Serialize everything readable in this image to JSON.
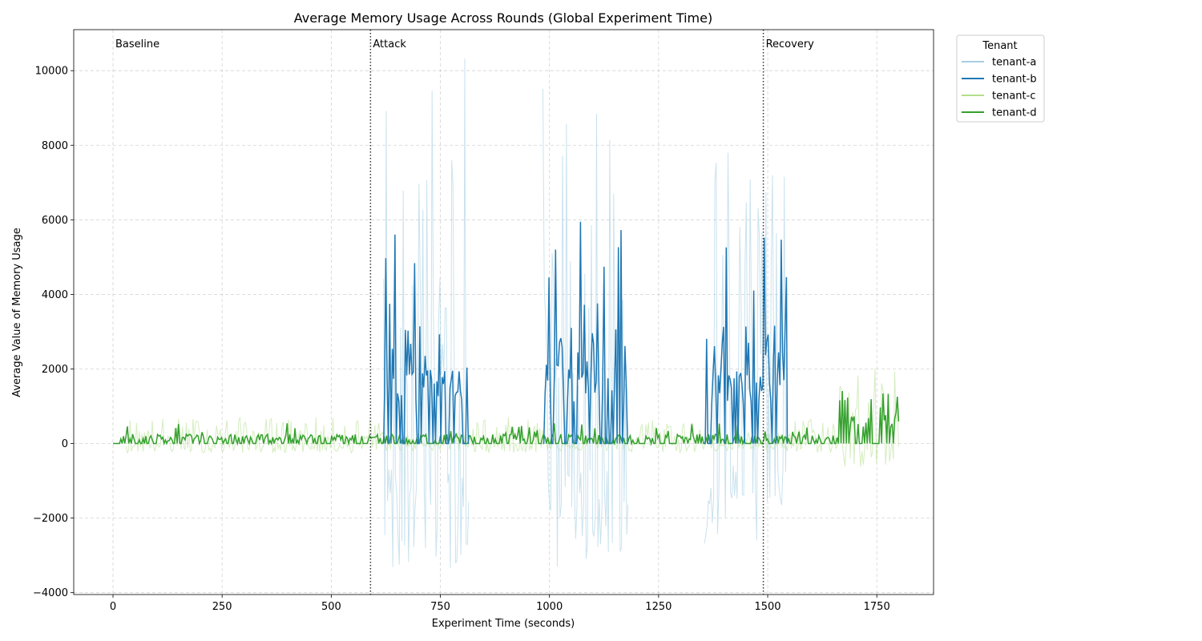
{
  "chart_data": {
    "type": "line",
    "title": "Average Memory Usage Across Rounds (Global Experiment Time)",
    "xlabel": "Experiment Time (seconds)",
    "ylabel": "Average Value of Memory Usage",
    "xlim": [
      -90,
      1880
    ],
    "ylim": [
      -4050,
      11100
    ],
    "xticks": [
      0,
      250,
      500,
      750,
      1000,
      1250,
      1500,
      1750
    ],
    "yticks": [
      -4000,
      -2000,
      0,
      2000,
      4000,
      6000,
      8000,
      10000
    ],
    "xtick_labels": [
      "0",
      "250",
      "500",
      "750",
      "1000",
      "1250",
      "1500",
      "1750"
    ],
    "ytick_labels": [
      "−4000",
      "−2000",
      "0",
      "2000",
      "4000",
      "6000",
      "8000",
      "10000"
    ],
    "grid": true,
    "legend": {
      "title": "Tenant",
      "placement": "outside upper right"
    },
    "phases": [
      {
        "label": "Baseline",
        "x": 0
      },
      {
        "label": "Attack",
        "x": 590
      },
      {
        "label": "Recovery",
        "x": 1490
      }
    ],
    "series": [
      {
        "name": "tenant-a",
        "color": "#a6cee3",
        "segments": [
          {
            "x_start": 620,
            "x_end": 815,
            "peak": 10400,
            "trough": -3400
          },
          {
            "x_start": 985,
            "x_end": 1180,
            "peak": 10400,
            "trough": -3400
          },
          {
            "x_start": 1355,
            "x_end": 1545,
            "peak": 9000,
            "trough": -2900
          }
        ]
      },
      {
        "name": "tenant-b",
        "color": "#1f78b4",
        "segments": [
          {
            "x_start": 620,
            "x_end": 815,
            "peak": 6270,
            "typical_high": 2000
          },
          {
            "x_start": 985,
            "x_end": 1180,
            "peak": 6270,
            "typical_high": 2000
          },
          {
            "x_start": 1355,
            "x_end": 1545,
            "peak": 5650,
            "typical_high": 2000
          }
        ]
      },
      {
        "name": "tenant-c",
        "color": "#b2df8a",
        "segments": [
          {
            "x_start": 0,
            "x_end": 1800,
            "typical_range": [
              -250,
              700
            ],
            "late_range": [
              -700,
              2100
            ]
          }
        ]
      },
      {
        "name": "tenant-d",
        "color": "#33a02c",
        "segments": [
          {
            "x_start": 0,
            "x_end": 1800,
            "typical_high": 250,
            "peak_high": 550,
            "late_peak": 1430
          }
        ]
      }
    ]
  }
}
